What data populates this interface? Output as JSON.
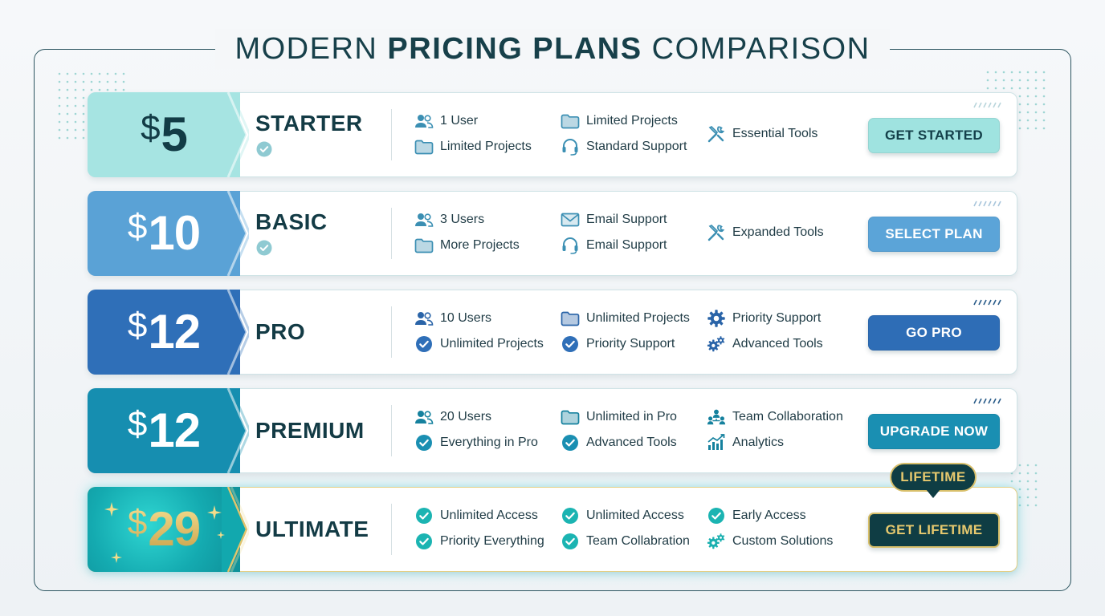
{
  "title": {
    "thin_left": "MODERN ",
    "bold": "PRICING PLANS",
    "thin_right": " COMPARISON"
  },
  "plans": [
    {
      "price": "5",
      "currency": "$",
      "name": "STARTER",
      "checked": true,
      "colors": {
        "tab": "#a6e4e2",
        "tab_text": "#123c46",
        "button": "#9fe3e0",
        "button_text": "#14404a"
      },
      "features": [
        {
          "icon": "users-icon",
          "label": "1 User"
        },
        {
          "icon": "folder-icon",
          "label": "Limited Projects"
        },
        {
          "icon": "folder-icon",
          "label": "Limited Projects"
        },
        {
          "icon": "headset-icon",
          "label": "Standard Support"
        },
        {
          "icon": "tools-icon",
          "label": "Essential Tools"
        }
      ],
      "cta": "GET STARTED"
    },
    {
      "price": "10",
      "currency": "$",
      "name": "BASIC",
      "checked": true,
      "colors": {
        "tab": "#5aa2d6",
        "tab_text": "#ffffff",
        "button": "#5ba4d8",
        "button_text": "#ffffff"
      },
      "features": [
        {
          "icon": "users-icon",
          "label": "3 Users"
        },
        {
          "icon": "folder-icon",
          "label": "More Projects"
        },
        {
          "icon": "mail-icon",
          "label": "Email Support"
        },
        {
          "icon": "headset-icon",
          "label": "Email Support"
        },
        {
          "icon": "tools-icon",
          "label": "Expanded Tools"
        }
      ],
      "cta": "SELECT PLAN"
    },
    {
      "price": "12",
      "currency": "$",
      "name": "PRO",
      "checked": false,
      "colors": {
        "tab": "#2f6fb8",
        "tab_text": "#ffffff",
        "button": "#2e6db6",
        "button_text": "#ffffff"
      },
      "features": [
        {
          "icon": "users-icon",
          "label": "10 Users"
        },
        {
          "icon": "check-circle-icon",
          "label": "Unlimited Projects"
        },
        {
          "icon": "folder-icon",
          "label": "Unlimited Projects"
        },
        {
          "icon": "check-circle-icon",
          "label": "Priority Support"
        },
        {
          "icon": "gear-icon",
          "label": "Priority Support"
        },
        {
          "icon": "gears-icon",
          "label": "Advanced Tools"
        }
      ],
      "cta": "GO PRO"
    },
    {
      "price": "12",
      "currency": "$",
      "name": "PREMIUM",
      "checked": false,
      "colors": {
        "tab": "#168eb0",
        "tab_text": "#ffffff",
        "button": "#1a8fb2",
        "button_text": "#ffffff"
      },
      "features": [
        {
          "icon": "users-icon",
          "label": "20 Users"
        },
        {
          "icon": "check-circle-icon",
          "label": "Everything in Pro"
        },
        {
          "icon": "folder-icon",
          "label": "Unlimited in Pro"
        },
        {
          "icon": "check-circle-icon",
          "label": "Advanced Tools"
        },
        {
          "icon": "team-icon",
          "label": "Team Collaboration"
        },
        {
          "icon": "analytics-icon",
          "label": "Analytics"
        }
      ],
      "cta": "UPGRADE NOW"
    },
    {
      "price": "29",
      "currency": "$",
      "name": "ULTIMATE",
      "checked": false,
      "colors": {
        "tab": "#14b2b6",
        "tab_text": "#e6c56a",
        "button": "#0f3d44",
        "button_text": "#e7c96e"
      },
      "features": [
        {
          "icon": "check-circle-icon",
          "label": "Unlimited Access"
        },
        {
          "icon": "check-circle-icon",
          "label": "Priority Everything"
        },
        {
          "icon": "check-circle-icon",
          "label": "Unlimited Access"
        },
        {
          "icon": "check-circle-icon",
          "label": "Team Collabration"
        },
        {
          "icon": "check-circle-icon",
          "label": "Early Access"
        },
        {
          "icon": "gears-icon",
          "label": "Custom Solutions"
        }
      ],
      "cta": "GET LIFETIME",
      "badge": "LIFETIME"
    }
  ]
}
